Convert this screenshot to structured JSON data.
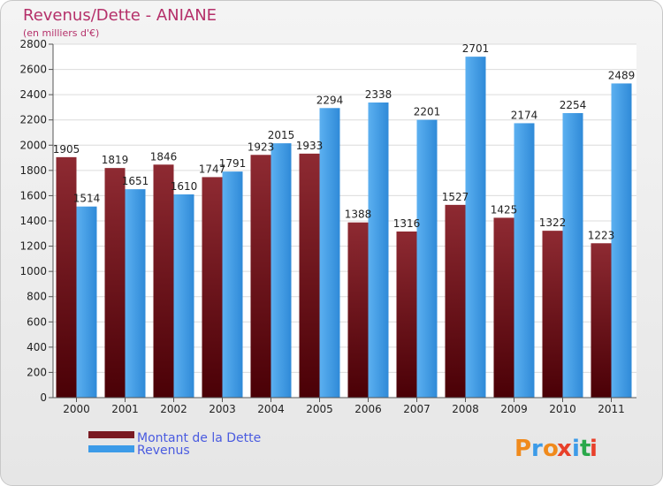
{
  "chart_data": {
    "type": "bar",
    "title": "Revenus/Dette - ANIANE",
    "subtitle": "(en milliers d'€)",
    "categories": [
      "2000",
      "2001",
      "2002",
      "2003",
      "2004",
      "2005",
      "2006",
      "2007",
      "2008",
      "2009",
      "2010",
      "2011"
    ],
    "series": [
      {
        "name": "Montant de la Dette",
        "values": [
          1905,
          1819,
          1846,
          1747,
          1923,
          1933,
          1388,
          1316,
          1527,
          1425,
          1322,
          1223
        ],
        "color": "#7a1a22"
      },
      {
        "name": "Revenus",
        "values": [
          1514,
          1651,
          1610,
          1791,
          2015,
          2294,
          2338,
          2201,
          2701,
          2174,
          2254,
          2489
        ],
        "color": "#3c9be8"
      }
    ],
    "ylim": [
      0,
      2800
    ],
    "yticks": [
      0,
      200,
      400,
      600,
      800,
      1000,
      1200,
      1400,
      1600,
      1800,
      2000,
      2200,
      2400,
      2600,
      2800
    ],
    "grid": true,
    "legend_position": "bottom-left"
  },
  "brand": {
    "name": "Proxiti",
    "letters": [
      "P",
      "r",
      "o",
      "x",
      "i",
      "t",
      "i"
    ],
    "colors": [
      "#f08a1c",
      "#3c9be8",
      "#f08a1c",
      "#e8402a",
      "#3c9be8",
      "#2aa84a",
      "#e8402a"
    ]
  }
}
